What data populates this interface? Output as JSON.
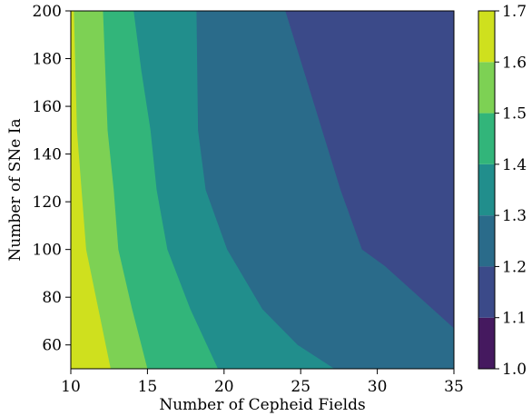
{
  "chart_data": {
    "type": "contour",
    "title": "",
    "xlabel": "Number of Cepheid Fields",
    "ylabel": "Number of SNe Ia",
    "xlim": [
      10,
      35
    ],
    "ylim": [
      50,
      200
    ],
    "xticks": [
      10,
      15,
      20,
      25,
      30,
      35
    ],
    "yticks": [
      60,
      80,
      100,
      120,
      140,
      160,
      180,
      200
    ],
    "grid": false,
    "levels": [
      1.0,
      1.1,
      1.2,
      1.3,
      1.4,
      1.5,
      1.6,
      1.7
    ],
    "level_colors": [
      "#45195f",
      "#3b4a89",
      "#2a6b8a",
      "#218e8c",
      "#32b57a",
      "#7dd154",
      "#cfe01e"
    ],
    "contour_boundaries": [
      {
        "level": 1.6,
        "points": [
          [
            10.2,
            200
          ],
          [
            10.4,
            150
          ],
          [
            10.7,
            125
          ],
          [
            11.0,
            100
          ],
          [
            11.8,
            75
          ],
          [
            12.6,
            50
          ]
        ]
      },
      {
        "level": 1.5,
        "points": [
          [
            12.1,
            200
          ],
          [
            12.4,
            150
          ],
          [
            12.8,
            125
          ],
          [
            13.1,
            100
          ],
          [
            14.0,
            75
          ],
          [
            15.0,
            50
          ]
        ]
      },
      {
        "level": 1.4,
        "points": [
          [
            14.1,
            200
          ],
          [
            14.6,
            175
          ],
          [
            15.2,
            150
          ],
          [
            15.6,
            125
          ],
          [
            16.3,
            100
          ],
          [
            17.8,
            75
          ],
          [
            19.6,
            50
          ]
        ]
      },
      {
        "level": 1.3,
        "points": [
          [
            18.2,
            200
          ],
          [
            18.3,
            150
          ],
          [
            18.8,
            125
          ],
          [
            20.2,
            100
          ],
          [
            22.5,
            75
          ],
          [
            24.8,
            60
          ],
          [
            27.2,
            50
          ]
        ]
      },
      {
        "level": 1.2,
        "points": [
          [
            24.0,
            200
          ],
          [
            25.2,
            175
          ],
          [
            26.4,
            150
          ],
          [
            27.6,
            125
          ],
          [
            29.0,
            100
          ],
          [
            30.5,
            93
          ],
          [
            35.0,
            67
          ]
        ]
      }
    ],
    "colorbar": {
      "min": 1.0,
      "max": 1.7,
      "ticks": [
        "1.0",
        "1.1",
        "1.2",
        "1.3",
        "1.4",
        "1.5",
        "1.6",
        "1.7"
      ]
    }
  }
}
